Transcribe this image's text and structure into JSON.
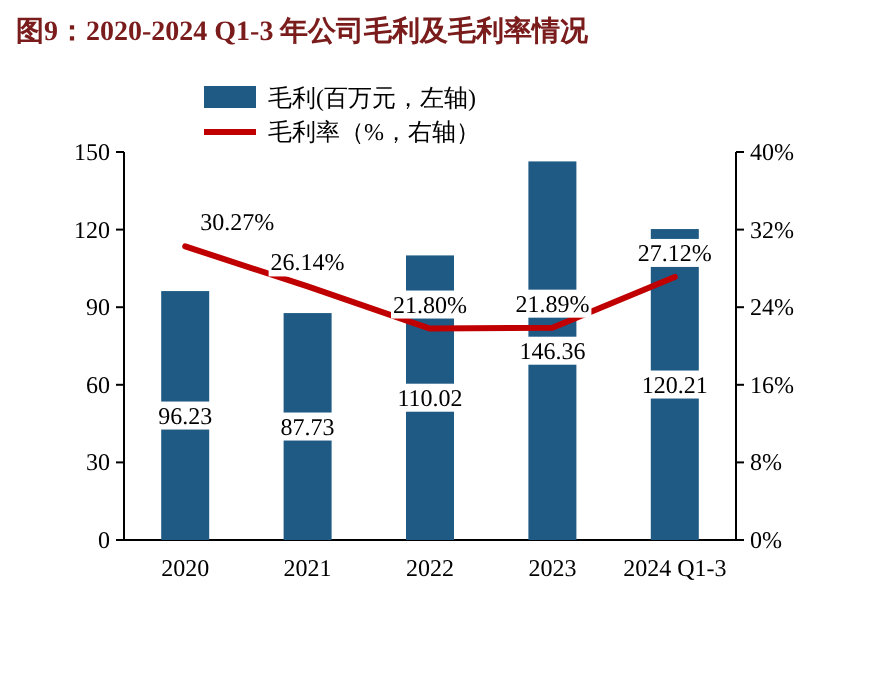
{
  "chart_data": {
    "type": "bar",
    "title": "图9：2020-2024 Q1-3 年公司毛利及毛利率情况",
    "categories": [
      "2020",
      "2021",
      "2022",
      "2023",
      "2024 Q1-3"
    ],
    "series": [
      {
        "name": "毛利(百万元，左轴)",
        "color": "#1f5a85",
        "values": [
          96.23,
          87.73,
          110.02,
          146.36,
          120.21
        ],
        "value_labels": [
          "96.23",
          "87.73",
          "110.02",
          "146.36",
          "120.21"
        ]
      },
      {
        "name": "毛利率（%，右轴）",
        "type": "line",
        "axis": "y2",
        "color": "#c00000",
        "values": [
          30.27,
          26.14,
          21.8,
          21.89,
          27.12
        ],
        "value_labels": [
          "30.27%",
          "26.14%",
          "21.80%",
          "21.89%",
          "27.12%"
        ]
      }
    ],
    "ylim": [
      0,
      150
    ],
    "yticks": [
      0,
      30,
      60,
      90,
      120,
      150
    ],
    "y2lim": [
      0,
      40
    ],
    "y2ticks": [
      {
        "value": 0,
        "label": "0%"
      },
      {
        "value": 8,
        "label": "8%"
      },
      {
        "value": 16,
        "label": "16%"
      },
      {
        "value": 24,
        "label": "24%"
      },
      {
        "value": 32,
        "label": "32%"
      },
      {
        "value": 40,
        "label": "40%"
      }
    ],
    "legend": "top left"
  }
}
